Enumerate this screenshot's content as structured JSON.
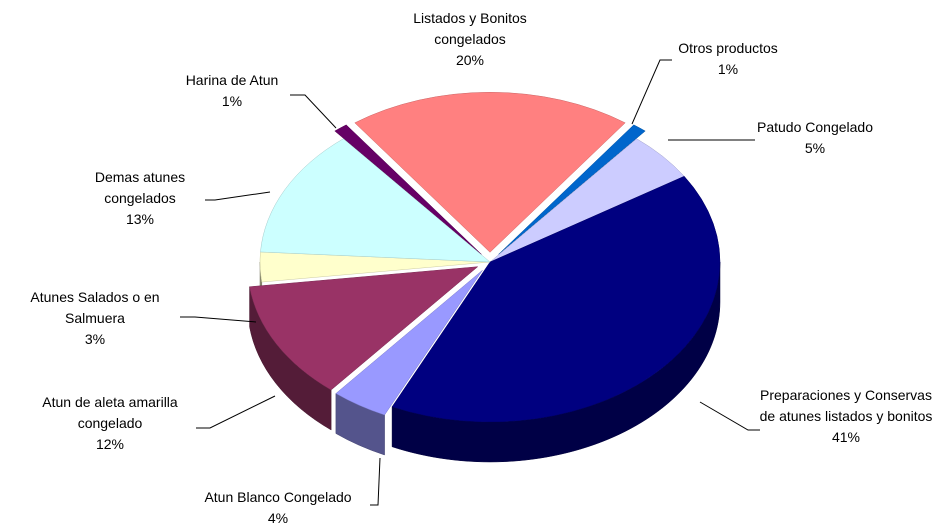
{
  "chart_data": {
    "type": "pie",
    "categories": [
      "Listados y Bonitos congelados",
      "Otros productos",
      "Patudo Congelado",
      "Preparaciones y Conservas de atunes listados y bonitos",
      "Atun Blanco Congelado",
      "Atun de aleta amarilla congelado",
      "Atunes Salados o en Salmuera",
      "Demas atunes congelados",
      "Harina de Atun"
    ],
    "values": [
      20,
      1,
      5,
      41,
      4,
      12,
      3,
      13,
      1
    ],
    "value_labels": [
      "20%",
      "1%",
      "5%",
      "41%",
      "4%",
      "12%",
      "3%",
      "13%",
      "1%"
    ],
    "colors": [
      "#ff8080",
      "#0066cc",
      "#ccccff",
      "#000080",
      "#9999ff",
      "#993366",
      "#ffffcc",
      "#ccffff",
      "#660066"
    ]
  }
}
